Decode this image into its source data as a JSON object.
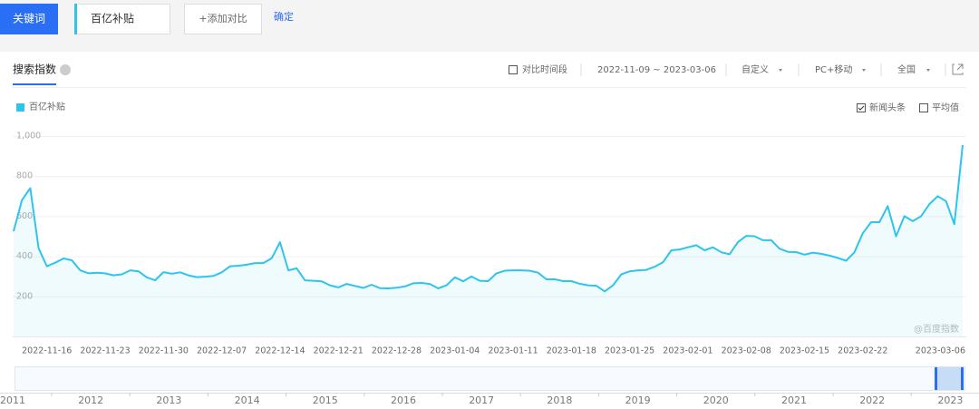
{
  "toolbar": {
    "tab": "关键词",
    "keyword": "百亿补贴",
    "add": "+添加对比",
    "confirm": "确定"
  },
  "panel": {
    "title": "搜索指数",
    "compare": "对比时间段",
    "range": "2022-11-09 ~ 2023-03-06",
    "custom": "自定义",
    "device": "PC+移动",
    "region": "全国",
    "news": "新闻头条",
    "average": "平均值",
    "watermark": "@百度指数"
  },
  "chart_data": {
    "type": "line",
    "ylim": [
      0,
      1000
    ],
    "yticks": [
      200,
      400,
      600,
      800,
      {
        "value": 1000,
        "label": "1,000"
      }
    ],
    "grid": true,
    "categories": [
      null,
      null,
      null,
      null,
      "2022-11-16",
      null,
      null,
      null,
      null,
      null,
      null,
      "2022-11-23",
      null,
      null,
      null,
      null,
      null,
      null,
      "2022-11-30",
      null,
      null,
      null,
      null,
      null,
      null,
      "2022-12-07",
      null,
      null,
      null,
      null,
      null,
      null,
      "2022-12-14",
      null,
      null,
      null,
      null,
      null,
      null,
      "2022-12-21",
      null,
      null,
      null,
      null,
      null,
      null,
      "2022-12-28",
      null,
      null,
      null,
      null,
      null,
      null,
      "2023-01-04",
      null,
      null,
      null,
      null,
      null,
      null,
      "2023-01-11",
      null,
      null,
      null,
      null,
      null,
      null,
      "2023-01-18",
      null,
      null,
      null,
      null,
      null,
      null,
      "2023-01-25",
      null,
      null,
      null,
      null,
      null,
      null,
      "2023-02-01",
      null,
      null,
      null,
      null,
      null,
      null,
      "2023-02-08",
      null,
      null,
      null,
      null,
      null,
      null,
      "2023-02-15",
      null,
      null,
      null,
      null,
      null,
      null,
      "2023-02-22",
      null,
      null,
      null,
      null,
      null,
      null,
      null,
      null,
      null,
      null,
      null,
      "2023-03-06"
    ],
    "series": [
      {
        "name": "百亿补贴",
        "color": "#2fc4ec",
        "values": [
          525,
          680,
          740,
          440,
          350,
          368,
          389,
          380,
          330,
          315,
          318,
          315,
          305,
          310,
          330,
          325,
          295,
          280,
          321,
          313,
          320,
          305,
          296,
          298,
          302,
          320,
          350,
          353,
          358,
          366,
          366,
          390,
          470,
          330,
          340,
          280,
          278,
          275,
          255,
          245,
          262,
          252,
          242,
          258,
          241,
          240,
          243,
          250,
          265,
          267,
          262,
          240,
          255,
          295,
          275,
          299,
          278,
          276,
          315,
          328,
          330,
          330,
          328,
          318,
          285,
          285,
          276,
          276,
          263,
          255,
          253,
          225,
          255,
          310,
          325,
          330,
          332,
          348,
          370,
          430,
          434,
          445,
          455,
          430,
          445,
          420,
          410,
          470,
          502,
          500,
          480,
          480,
          438,
          422,
          421,
          408,
          418,
          412,
          403,
          392,
          378,
          420,
          515,
          570,
          570,
          650,
          500,
          600,
          575,
          600,
          660,
          700,
          675,
          560,
          955
        ]
      }
    ]
  },
  "navigator": {
    "years": [
      "2011",
      "2012",
      "2013",
      "2014",
      "2015",
      "2016",
      "2017",
      "2018",
      "2019",
      "2020",
      "2021",
      "2022",
      "2023"
    ]
  }
}
